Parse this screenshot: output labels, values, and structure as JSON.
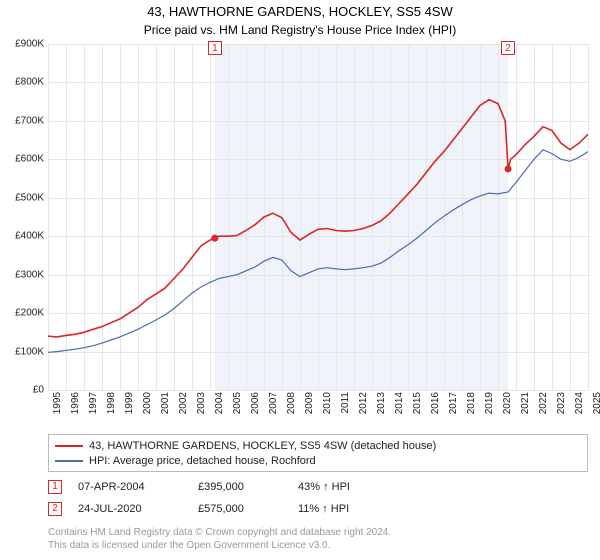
{
  "title": "43, HAWTHORNE GARDENS, HOCKLEY, SS5 4SW",
  "subtitle": "Price paid vs. HM Land Registry's House Price Index (HPI)",
  "chart": {
    "type": "line",
    "background_color": "#ffffff",
    "plot_shade_color": "#f0f3fa",
    "grid_color": "#e6e6e6",
    "ylim": [
      0,
      900000
    ],
    "ytick_step": 100000,
    "ytick_prefix": "£",
    "ytick_suffix": "K",
    "y_labels": [
      "£0",
      "£100K",
      "£200K",
      "£300K",
      "£400K",
      "£500K",
      "£600K",
      "£700K",
      "£800K",
      "£900K"
    ],
    "xlim": [
      1995,
      2025
    ],
    "x_labels": [
      "1995",
      "1996",
      "1997",
      "1998",
      "1999",
      "2000",
      "2001",
      "2002",
      "2003",
      "2004",
      "2005",
      "2006",
      "2007",
      "2008",
      "2009",
      "2010",
      "2011",
      "2012",
      "2013",
      "2014",
      "2015",
      "2016",
      "2017",
      "2018",
      "2019",
      "2020",
      "2021",
      "2022",
      "2023",
      "2024",
      "2025"
    ],
    "shade_start_year": 2004.27,
    "shade_end_year": 2020.56,
    "series": [
      {
        "name": "43, HAWTHORNE GARDENS, HOCKLEY, SS5 4SW (detached house)",
        "color": "#d92626",
        "line_width": 1.6,
        "points": [
          [
            1995.0,
            140000
          ],
          [
            1995.5,
            138000
          ],
          [
            1996.0,
            142000
          ],
          [
            1996.5,
            145000
          ],
          [
            1997.0,
            150000
          ],
          [
            1997.5,
            158000
          ],
          [
            1998.0,
            165000
          ],
          [
            1998.5,
            175000
          ],
          [
            1999.0,
            185000
          ],
          [
            1999.5,
            200000
          ],
          [
            2000.0,
            215000
          ],
          [
            2000.5,
            235000
          ],
          [
            2001.0,
            250000
          ],
          [
            2001.5,
            265000
          ],
          [
            2002.0,
            290000
          ],
          [
            2002.5,
            315000
          ],
          [
            2003.0,
            345000
          ],
          [
            2003.5,
            375000
          ],
          [
            2004.0,
            390000
          ],
          [
            2004.27,
            395000
          ],
          [
            2004.5,
            400000
          ],
          [
            2005.0,
            400000
          ],
          [
            2005.5,
            402000
          ],
          [
            2006.0,
            415000
          ],
          [
            2006.5,
            430000
          ],
          [
            2007.0,
            450000
          ],
          [
            2007.5,
            460000
          ],
          [
            2008.0,
            448000
          ],
          [
            2008.5,
            410000
          ],
          [
            2009.0,
            390000
          ],
          [
            2009.5,
            405000
          ],
          [
            2010.0,
            418000
          ],
          [
            2010.5,
            420000
          ],
          [
            2011.0,
            415000
          ],
          [
            2011.5,
            413000
          ],
          [
            2012.0,
            415000
          ],
          [
            2012.5,
            420000
          ],
          [
            2013.0,
            428000
          ],
          [
            2013.5,
            440000
          ],
          [
            2014.0,
            460000
          ],
          [
            2014.5,
            485000
          ],
          [
            2015.0,
            510000
          ],
          [
            2015.5,
            535000
          ],
          [
            2016.0,
            565000
          ],
          [
            2016.5,
            595000
          ],
          [
            2017.0,
            620000
          ],
          [
            2017.5,
            650000
          ],
          [
            2018.0,
            680000
          ],
          [
            2018.5,
            710000
          ],
          [
            2019.0,
            740000
          ],
          [
            2019.5,
            755000
          ],
          [
            2020.0,
            745000
          ],
          [
            2020.4,
            700000
          ],
          [
            2020.56,
            575000
          ],
          [
            2020.7,
            600000
          ],
          [
            2021.0,
            612000
          ],
          [
            2021.5,
            638000
          ],
          [
            2022.0,
            660000
          ],
          [
            2022.5,
            685000
          ],
          [
            2023.0,
            675000
          ],
          [
            2023.5,
            642000
          ],
          [
            2024.0,
            625000
          ],
          [
            2024.5,
            642000
          ],
          [
            2025.0,
            665000
          ]
        ]
      },
      {
        "name": "HPI: Average price, detached house, Rochford",
        "color": "#4a6db0",
        "line_width": 1.2,
        "points": [
          [
            1995.0,
            98000
          ],
          [
            1995.5,
            100000
          ],
          [
            1996.0,
            103000
          ],
          [
            1996.5,
            106000
          ],
          [
            1997.0,
            110000
          ],
          [
            1997.5,
            115000
          ],
          [
            1998.0,
            122000
          ],
          [
            1998.5,
            130000
          ],
          [
            1999.0,
            138000
          ],
          [
            1999.5,
            148000
          ],
          [
            2000.0,
            158000
          ],
          [
            2000.5,
            170000
          ],
          [
            2001.0,
            182000
          ],
          [
            2001.5,
            195000
          ],
          [
            2002.0,
            212000
          ],
          [
            2002.5,
            232000
          ],
          [
            2003.0,
            252000
          ],
          [
            2003.5,
            268000
          ],
          [
            2004.0,
            280000
          ],
          [
            2004.5,
            290000
          ],
          [
            2005.0,
            295000
          ],
          [
            2005.5,
            300000
          ],
          [
            2006.0,
            310000
          ],
          [
            2006.5,
            320000
          ],
          [
            2007.0,
            335000
          ],
          [
            2007.5,
            345000
          ],
          [
            2008.0,
            338000
          ],
          [
            2008.5,
            310000
          ],
          [
            2009.0,
            295000
          ],
          [
            2009.5,
            305000
          ],
          [
            2010.0,
            315000
          ],
          [
            2010.5,
            318000
          ],
          [
            2011.0,
            315000
          ],
          [
            2011.5,
            313000
          ],
          [
            2012.0,
            315000
          ],
          [
            2012.5,
            318000
          ],
          [
            2013.0,
            322000
          ],
          [
            2013.5,
            330000
          ],
          [
            2014.0,
            345000
          ],
          [
            2014.5,
            362000
          ],
          [
            2015.0,
            378000
          ],
          [
            2015.5,
            395000
          ],
          [
            2016.0,
            415000
          ],
          [
            2016.5,
            435000
          ],
          [
            2017.0,
            452000
          ],
          [
            2017.5,
            468000
          ],
          [
            2018.0,
            482000
          ],
          [
            2018.5,
            495000
          ],
          [
            2019.0,
            505000
          ],
          [
            2019.5,
            512000
          ],
          [
            2020.0,
            510000
          ],
          [
            2020.56,
            515000
          ],
          [
            2021.0,
            540000
          ],
          [
            2021.5,
            570000
          ],
          [
            2022.0,
            600000
          ],
          [
            2022.5,
            625000
          ],
          [
            2023.0,
            615000
          ],
          [
            2023.5,
            600000
          ],
          [
            2024.0,
            595000
          ],
          [
            2024.5,
            605000
          ],
          [
            2025.0,
            620000
          ]
        ]
      }
    ],
    "sale_markers": [
      {
        "n": "1",
        "year": 2004.27,
        "price": 395000,
        "color": "#d92626"
      },
      {
        "n": "2",
        "year": 2020.56,
        "price": 575000,
        "color": "#d92626"
      }
    ],
    "sale_dot_radius": 3.5
  },
  "legend": {
    "items": [
      {
        "color": "#d92626",
        "label": "43, HAWTHORNE GARDENS, HOCKLEY, SS5 4SW (detached house)"
      },
      {
        "color": "#4a6db0",
        "label": "HPI: Average price, detached house, Rochford"
      }
    ]
  },
  "sales": [
    {
      "n": "1",
      "color": "#d92626",
      "date": "07-APR-2004",
      "price": "£395,000",
      "diff": "43% ↑ HPI"
    },
    {
      "n": "2",
      "color": "#d92626",
      "date": "24-JUL-2020",
      "price": "£575,000",
      "diff": "11% ↑ HPI"
    }
  ],
  "footer_lines": [
    "Contains HM Land Registry data © Crown copyright and database right 2024.",
    "This data is licensed under the Open Government Licence v3.0."
  ]
}
